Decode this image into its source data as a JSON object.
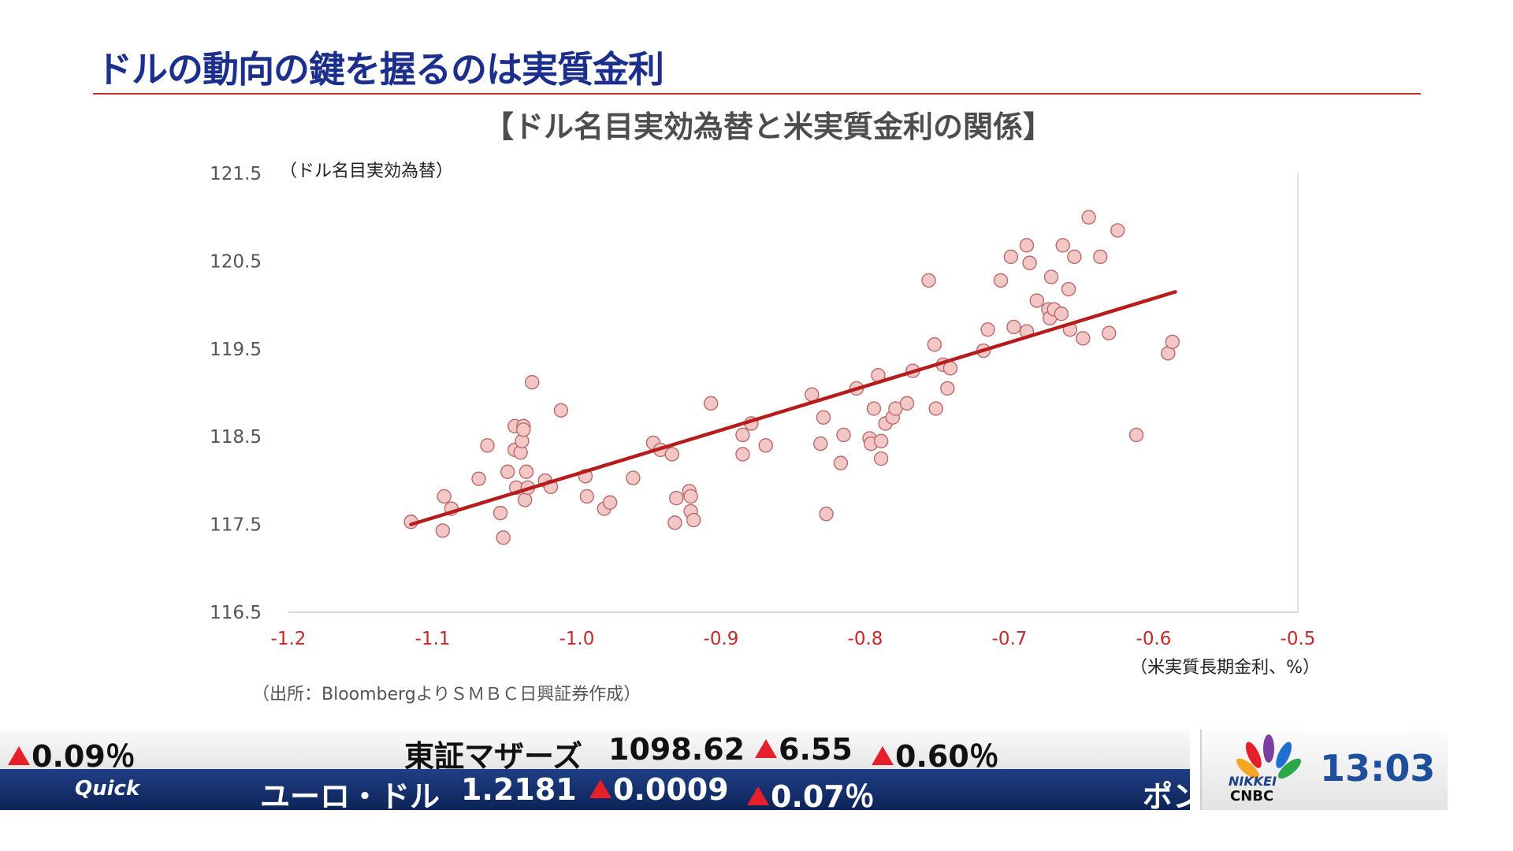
{
  "headline": "ドルの動向の鍵を握るのは実質金利",
  "chart_data": {
    "type": "scatter",
    "title": "【ドル名目実効為替と米実質金利の関係】",
    "ylabel": "（ドル名目実効為替）",
    "xlabel": "（米実質長期金利、%）",
    "source": "（出所：BloombergよりＳＭＢＣ日興証券作成）",
    "xlim": [
      -1.2,
      -0.5
    ],
    "ylim": [
      116.5,
      121.5
    ],
    "x_ticks": [
      "-1.2",
      "-1.1",
      "-1.0",
      "-0.9",
      "-0.8",
      "-0.7",
      "-0.6",
      "-0.5"
    ],
    "y_ticks": [
      "121.5",
      "120.5",
      "119.5",
      "118.5",
      "117.5",
      "116.5"
    ],
    "x_tick_values": [
      -1.2,
      -1.1,
      -1.0,
      -0.9,
      -0.8,
      -0.7,
      -0.6,
      -0.5
    ],
    "y_tick_values": [
      121.5,
      120.5,
      119.5,
      118.5,
      117.5,
      116.5
    ],
    "grid": false,
    "marker_color": "#f4c7c7",
    "marker_edge": "#b86a6a",
    "trendline": {
      "x": [
        -1.115,
        -0.585
      ],
      "y": [
        117.5,
        120.15
      ],
      "color": "#b71c1c"
    },
    "points": [
      [
        -1.115,
        117.53
      ],
      [
        -1.093,
        117.43
      ],
      [
        -1.092,
        117.82
      ],
      [
        -1.087,
        117.68
      ],
      [
        -1.068,
        118.02
      ],
      [
        -1.062,
        118.4
      ],
      [
        -1.053,
        117.63
      ],
      [
        -1.051,
        117.35
      ],
      [
        -1.048,
        118.1
      ],
      [
        -1.043,
        118.35
      ],
      [
        -1.043,
        118.62
      ],
      [
        -1.042,
        117.92
      ],
      [
        -1.039,
        118.32
      ],
      [
        -1.038,
        118.45
      ],
      [
        -1.037,
        118.62
      ],
      [
        -1.037,
        118.58
      ],
      [
        -1.036,
        117.78
      ],
      [
        -1.035,
        118.1
      ],
      [
        -1.034,
        117.92
      ],
      [
        -1.031,
        119.12
      ],
      [
        -1.022,
        118.0
      ],
      [
        -1.018,
        117.93
      ],
      [
        -1.011,
        118.8
      ],
      [
        -0.994,
        118.05
      ],
      [
        -0.993,
        117.82
      ],
      [
        -0.981,
        117.68
      ],
      [
        -0.977,
        117.75
      ],
      [
        -0.961,
        118.03
      ],
      [
        -0.947,
        118.43
      ],
      [
        -0.942,
        118.35
      ],
      [
        -0.934,
        118.3
      ],
      [
        -0.932,
        117.52
      ],
      [
        -0.931,
        117.8
      ],
      [
        -0.922,
        117.88
      ],
      [
        -0.921,
        117.82
      ],
      [
        -0.921,
        117.65
      ],
      [
        -0.919,
        117.55
      ],
      [
        -0.907,
        118.88
      ],
      [
        -0.885,
        118.52
      ],
      [
        -0.885,
        118.3
      ],
      [
        -0.879,
        118.65
      ],
      [
        -0.869,
        118.4
      ],
      [
        -0.837,
        118.98
      ],
      [
        -0.831,
        118.42
      ],
      [
        -0.829,
        118.72
      ],
      [
        -0.827,
        117.62
      ],
      [
        -0.817,
        118.2
      ],
      [
        -0.815,
        118.52
      ],
      [
        -0.806,
        119.05
      ],
      [
        -0.797,
        118.48
      ],
      [
        -0.796,
        118.42
      ],
      [
        -0.794,
        118.82
      ],
      [
        -0.791,
        119.2
      ],
      [
        -0.789,
        118.45
      ],
      [
        -0.789,
        118.25
      ],
      [
        -0.786,
        118.65
      ],
      [
        -0.781,
        118.72
      ],
      [
        -0.779,
        118.82
      ],
      [
        -0.771,
        118.88
      ],
      [
        -0.767,
        119.25
      ],
      [
        -0.756,
        120.28
      ],
      [
        -0.752,
        119.55
      ],
      [
        -0.751,
        118.82
      ],
      [
        -0.746,
        119.32
      ],
      [
        -0.743,
        119.05
      ],
      [
        -0.741,
        119.28
      ],
      [
        -0.718,
        119.48
      ],
      [
        -0.715,
        119.72
      ],
      [
        -0.706,
        120.28
      ],
      [
        -0.699,
        120.55
      ],
      [
        -0.697,
        119.75
      ],
      [
        -0.688,
        119.7
      ],
      [
        -0.688,
        120.68
      ],
      [
        -0.686,
        120.48
      ],
      [
        -0.681,
        120.05
      ],
      [
        -0.673,
        119.95
      ],
      [
        -0.672,
        119.85
      ],
      [
        -0.671,
        120.32
      ],
      [
        -0.669,
        119.95
      ],
      [
        -0.664,
        119.9
      ],
      [
        -0.663,
        120.68
      ],
      [
        -0.659,
        120.18
      ],
      [
        -0.658,
        119.72
      ],
      [
        -0.655,
        120.55
      ],
      [
        -0.649,
        119.62
      ],
      [
        -0.645,
        121.0
      ],
      [
        -0.637,
        120.55
      ],
      [
        -0.631,
        119.68
      ],
      [
        -0.625,
        120.85
      ],
      [
        -0.612,
        118.52
      ],
      [
        -0.59,
        119.45
      ],
      [
        -0.587,
        119.58
      ]
    ]
  },
  "ticker": {
    "top_left_pct": "0.09％",
    "top_name": "東証マザーズ",
    "top_value": "1098.62",
    "top_change": "6.55",
    "top_change_pct": "0.60％",
    "logo_text": "Quick",
    "bottom_name": "ユーロ・ドル",
    "bottom_value": "1.2181",
    "bottom_change": "0.0009",
    "bottom_change_pct": "0.07％",
    "bottom_cut_text": "ポン",
    "up_color": "#e5202a"
  },
  "corner": {
    "network_top": "NIKKEI",
    "network_bottom": "CNBC",
    "time": "13:03"
  }
}
